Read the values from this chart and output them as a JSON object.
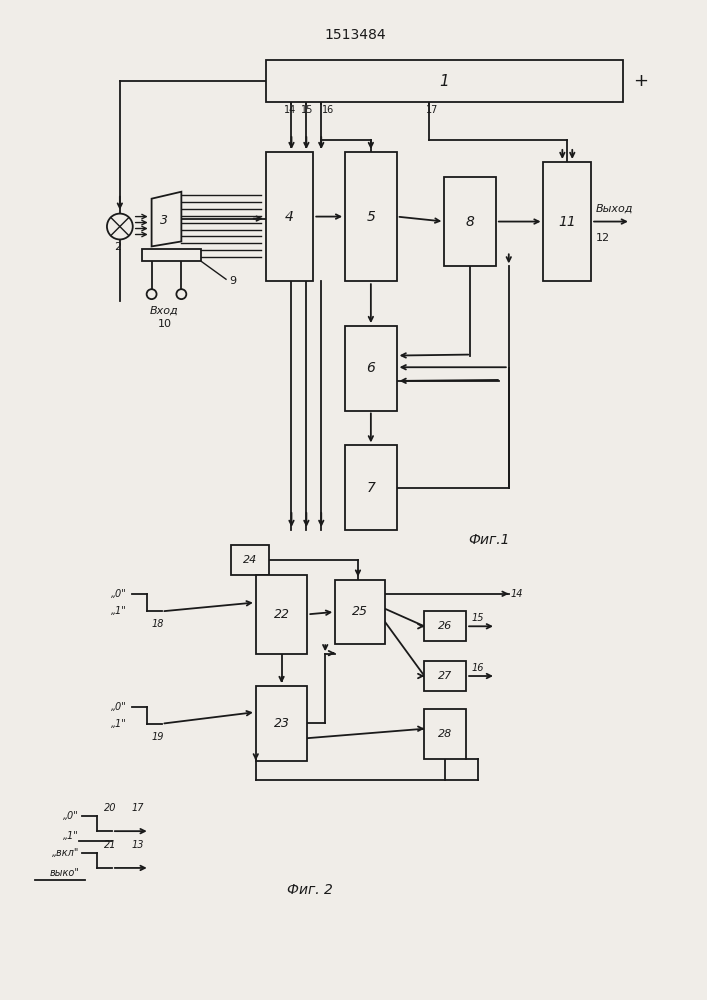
{
  "title": "1513484",
  "fig1_label": "Фиг.1",
  "fig2_label": "Фиг. 2",
  "bg_color": "#f0ede8",
  "line_color": "#1a1a1a",
  "box_color": "#f0ede8",
  "vykhod": "Выход",
  "vkhod": "Вход",
  "vkl": "вкл",
  "vykl": "выко"
}
